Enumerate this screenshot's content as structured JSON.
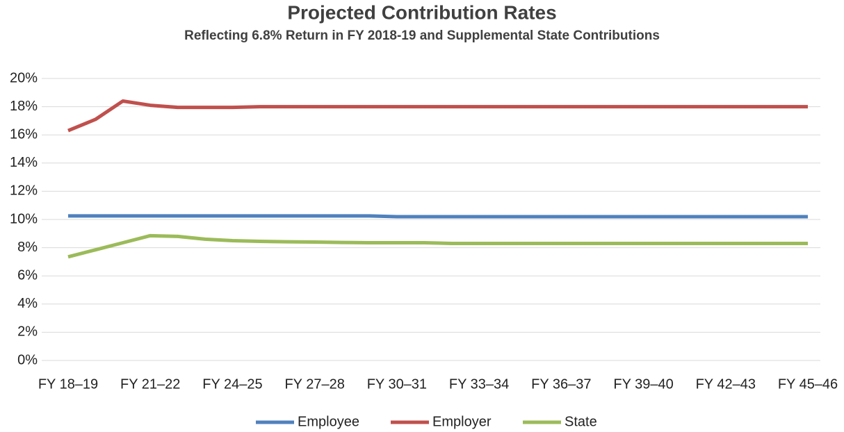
{
  "chart_data": {
    "type": "line",
    "title": "Projected Contribution Rates",
    "subtitle": "Reflecting 6.8% Return in FY 2018-19 and Supplemental State Contributions",
    "categories": [
      "FY 18–19",
      null,
      null,
      "FY 21–22",
      null,
      null,
      "FY 24–25",
      null,
      null,
      "FY 27–28",
      null,
      null,
      "FY 30–31",
      null,
      null,
      "FY 33–34",
      null,
      null,
      "FY 36–37",
      null,
      null,
      "FY 39–40",
      null,
      null,
      "FY 42–43",
      null,
      null,
      "FY 45–46"
    ],
    "series": [
      {
        "name": "Employee",
        "color": "#4f81bd",
        "values": [
          10.25,
          10.25,
          10.25,
          10.25,
          10.25,
          10.25,
          10.25,
          10.25,
          10.25,
          10.25,
          10.25,
          10.25,
          10.2,
          10.2,
          10.2,
          10.2,
          10.2,
          10.2,
          10.2,
          10.2,
          10.2,
          10.2,
          10.2,
          10.2,
          10.2,
          10.2,
          10.2,
          10.2
        ]
      },
      {
        "name": "Employer",
        "color": "#c0504d",
        "values": [
          16.3,
          17.1,
          18.4,
          18.1,
          17.95,
          17.95,
          17.95,
          18.0,
          18.0,
          18.0,
          18.0,
          18.0,
          18.0,
          18.0,
          18.0,
          18.0,
          18.0,
          18.0,
          18.0,
          18.0,
          18.0,
          18.0,
          18.0,
          18.0,
          18.0,
          18.0,
          18.0,
          18.0
        ]
      },
      {
        "name": "State",
        "color": "#9bbb59",
        "values": [
          7.35,
          7.85,
          8.35,
          8.85,
          8.8,
          8.6,
          8.5,
          8.45,
          8.42,
          8.4,
          8.37,
          8.35,
          8.35,
          8.35,
          8.3,
          8.3,
          8.3,
          8.3,
          8.3,
          8.3,
          8.3,
          8.3,
          8.3,
          8.3,
          8.3,
          8.3,
          8.3,
          8.3
        ]
      }
    ],
    "ylim": [
      0,
      20
    ],
    "yticks": [
      {
        "value": 0,
        "label": "0%"
      },
      {
        "value": 2,
        "label": "2%"
      },
      {
        "value": 4,
        "label": "4%"
      },
      {
        "value": 6,
        "label": "6%"
      },
      {
        "value": 8,
        "label": "8%"
      },
      {
        "value": 10,
        "label": "10%"
      },
      {
        "value": 12,
        "label": "12%"
      },
      {
        "value": 14,
        "label": "14%"
      },
      {
        "value": 16,
        "label": "16%"
      },
      {
        "value": 18,
        "label": "18%"
      },
      {
        "value": 20,
        "label": "20%"
      }
    ],
    "grid": true,
    "legend": "bottom"
  }
}
